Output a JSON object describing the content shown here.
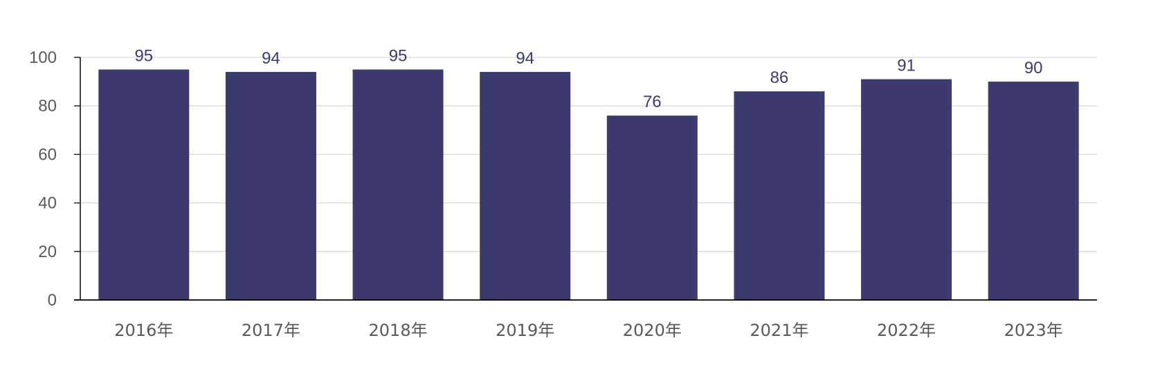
{
  "chart_data": {
    "type": "bar",
    "title": "",
    "xlabel": "",
    "ylabel": "",
    "categories": [
      "2016年",
      "2017年",
      "2018年",
      "2019年",
      "2020年",
      "2021年",
      "2022年",
      "2023年"
    ],
    "values": [
      95,
      94,
      95,
      94,
      76,
      86,
      91,
      90
    ],
    "data_labels": [
      "95",
      "94",
      "95",
      "94",
      "76",
      "86",
      "91",
      "90"
    ],
    "ylim": [
      0,
      100
    ],
    "yticks": [
      0,
      20,
      40,
      60,
      80,
      100
    ],
    "ytick_labels": [
      "0",
      "20",
      "40",
      "60",
      "80",
      "100"
    ],
    "grid": true,
    "legend": "none",
    "colors": {
      "bar": "#3d3b6e",
      "data_label": "#3d3b6e",
      "gridline": "#d9d9d9",
      "axis": "#000000",
      "tick_text": "#595959"
    }
  }
}
